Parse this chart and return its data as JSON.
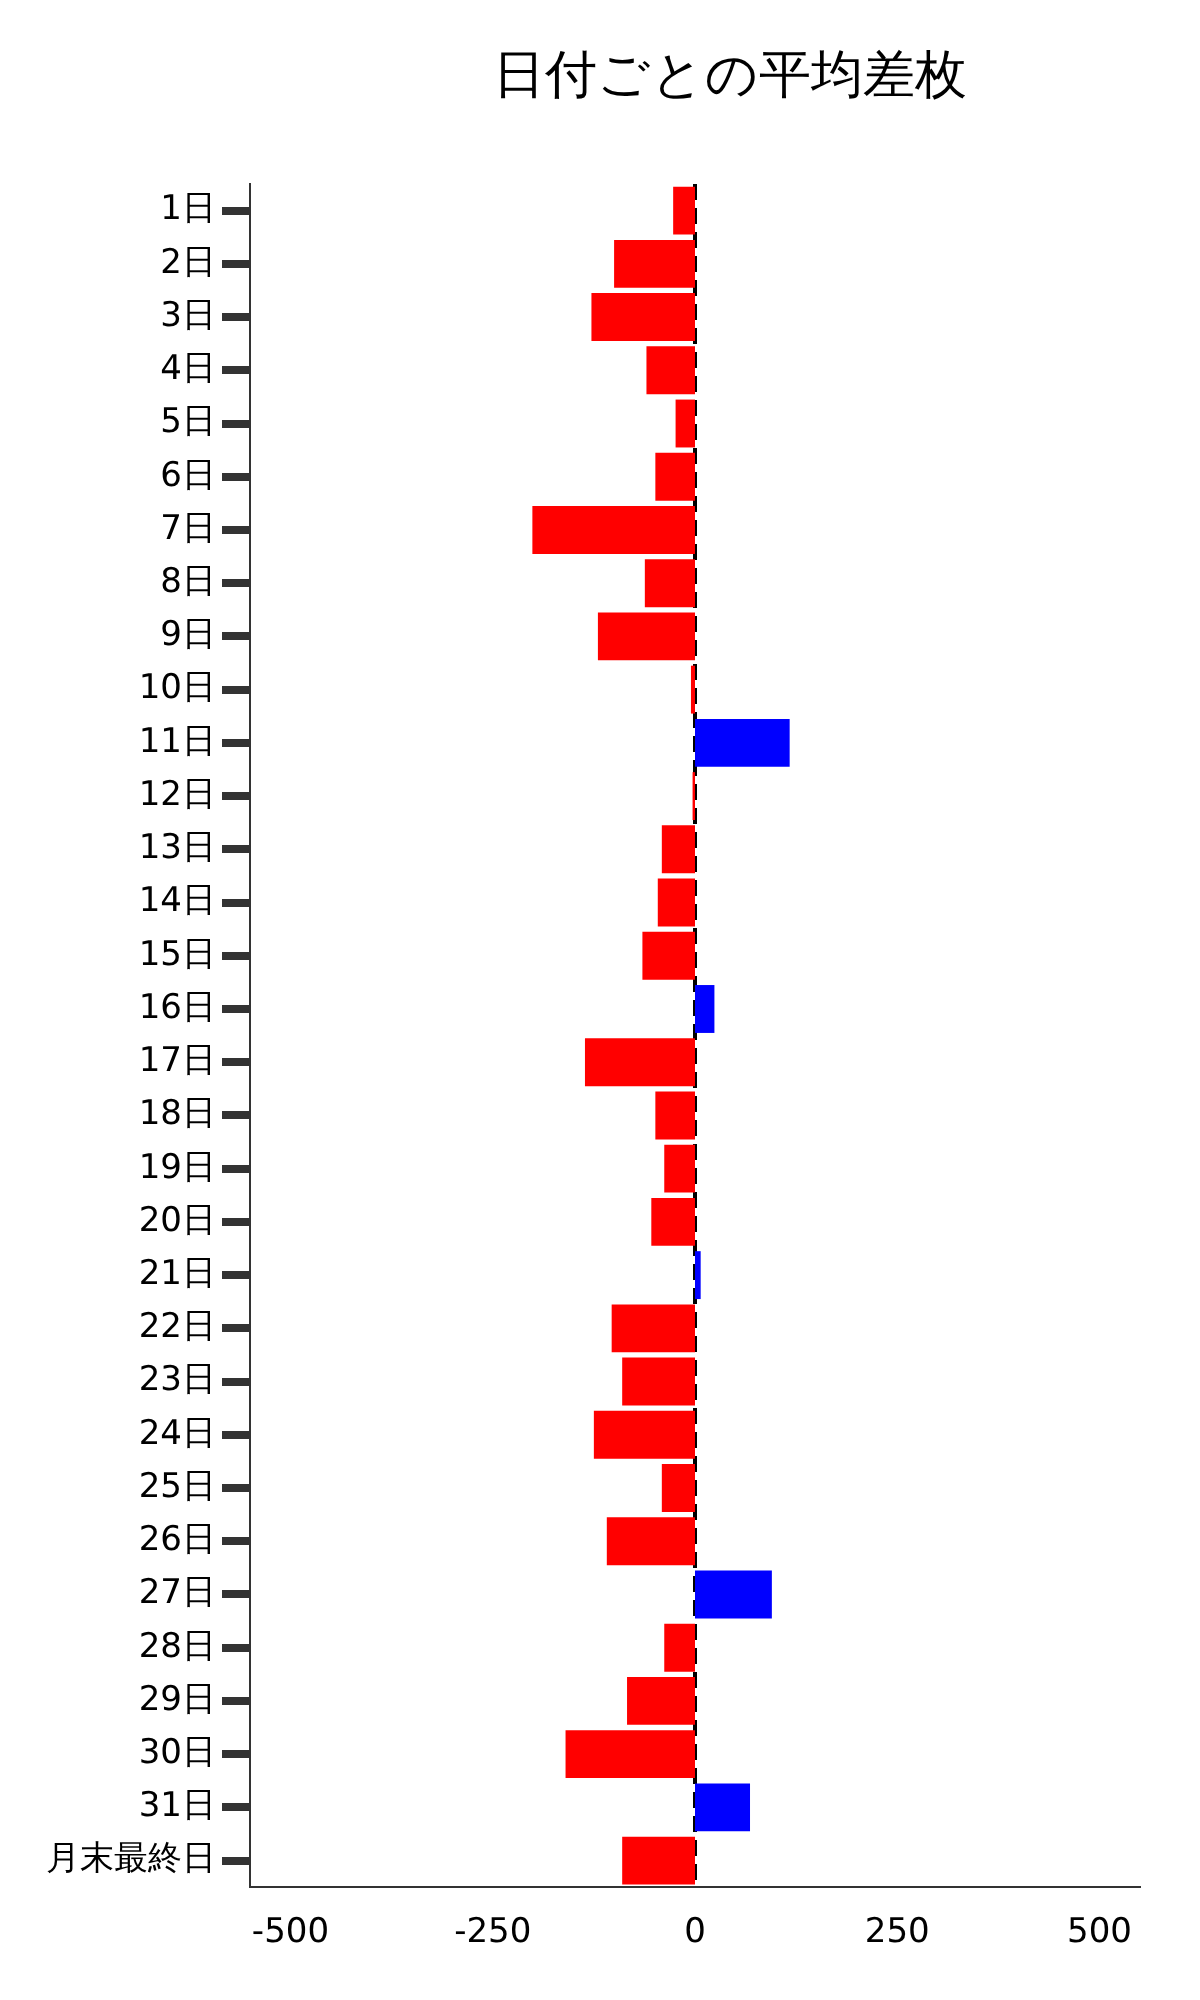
{
  "chart_data": {
    "type": "bar",
    "orientation": "horizontal",
    "title": "日付ごとの平均差枚",
    "categories": [
      "1日",
      "2日",
      "3日",
      "4日",
      "5日",
      "6日",
      "7日",
      "8日",
      "9日",
      "10日",
      "11日",
      "12日",
      "13日",
      "14日",
      "15日",
      "16日",
      "17日",
      "18日",
      "19日",
      "20日",
      "21日",
      "22日",
      "23日",
      "24日",
      "25日",
      "26日",
      "27日",
      "28日",
      "29日",
      "30日",
      "31日",
      "月末最終日"
    ],
    "values": [
      -27,
      -100,
      -128,
      -60,
      -24,
      -49,
      -201,
      -62,
      -120,
      -5,
      117,
      -3,
      -41,
      -46,
      -65,
      24,
      -136,
      -49,
      -38,
      -54,
      7,
      -103,
      -90,
      -125,
      -41,
      -109,
      95,
      -38,
      -84,
      -160,
      68,
      -90
    ],
    "colors": [
      "#ff0000",
      "#ff0000",
      "#ff0000",
      "#ff0000",
      "#ff0000",
      "#ff0000",
      "#ff0000",
      "#ff0000",
      "#ff0000",
      "#ff0000",
      "#0000ff",
      "#ff0000",
      "#ff0000",
      "#ff0000",
      "#ff0000",
      "#0000ff",
      "#ff0000",
      "#ff0000",
      "#ff0000",
      "#ff0000",
      "#0000ff",
      "#ff0000",
      "#ff0000",
      "#ff0000",
      "#ff0000",
      "#ff0000",
      "#0000ff",
      "#ff0000",
      "#ff0000",
      "#ff0000",
      "#0000ff",
      "#ff0000"
    ],
    "xlim": [
      -550,
      550
    ],
    "xticks": [
      -500,
      -250,
      0,
      250,
      500
    ],
    "ref_lines": [
      {
        "axis": "x",
        "value": 0,
        "color": "#000000",
        "line_style": "dashed"
      }
    ],
    "grid": false,
    "legend": false
  }
}
